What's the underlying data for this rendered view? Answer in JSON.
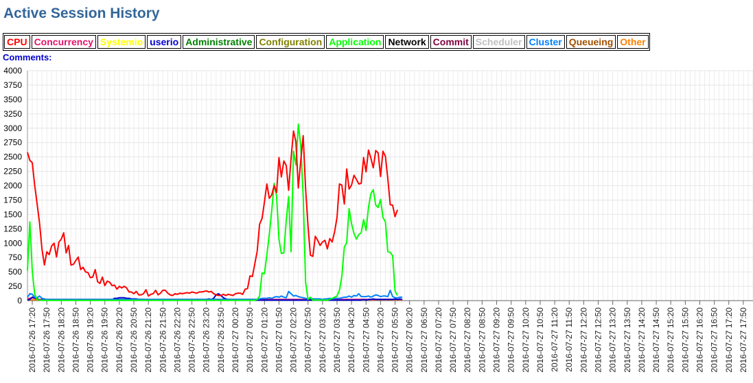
{
  "page": {
    "title": "Active Session History",
    "comments_label": "Comments:"
  },
  "legend": [
    {
      "label": "CPU",
      "color": "#ff0000"
    },
    {
      "label": "Concurrency",
      "color": "#e2136b"
    },
    {
      "label": "Systemio",
      "color": "#ffff00"
    },
    {
      "label": "userio",
      "color": "#0000cc"
    },
    {
      "label": "Administrative",
      "color": "#008000"
    },
    {
      "label": "Configuration",
      "color": "#808000"
    },
    {
      "label": "Application",
      "color": "#00ff00"
    },
    {
      "label": "Network",
      "color": "#000000"
    },
    {
      "label": "Commit",
      "color": "#800040"
    },
    {
      "label": "Scheduler",
      "color": "#c0c0c0"
    },
    {
      "label": "Cluster",
      "color": "#0080ff"
    },
    {
      "label": "Queueing",
      "color": "#a05000"
    },
    {
      "label": "Other",
      "color": "#ff8000"
    }
  ],
  "chart_data": {
    "type": "line",
    "title": "Active Session History",
    "ylim": [
      0,
      4000
    ],
    "yticks": [
      0,
      250,
      500,
      750,
      1000,
      1250,
      1500,
      1750,
      2000,
      2250,
      2500,
      2750,
      3000,
      3250,
      3500,
      3750,
      4000
    ],
    "xticks": [
      "2016-07-26 17:20",
      "2016-07-26 17:50",
      "2016-07-26 18:20",
      "2016-07-26 18:50",
      "2016-07-26 19:20",
      "2016-07-26 19:50",
      "2016-07-26 20:20",
      "2016-07-26 20:50",
      "2016-07-26 21:20",
      "2016-07-26 21:50",
      "2016-07-26 22:20",
      "2016-07-26 22:50",
      "2016-07-26 23:20",
      "2016-07-26 23:50",
      "2016-07-27 00:20",
      "2016-07-27 00:50",
      "2016-07-27 01:20",
      "2016-07-27 01:50",
      "2016-07-27 02:20",
      "2016-07-27 02:50",
      "2016-07-27 03:20",
      "2016-07-27 03:50",
      "2016-07-27 04:20",
      "2016-07-27 04:50",
      "2016-07-27 05:20",
      "2016-07-27 05:50",
      "2016-07-27 06:20",
      "2016-07-27 06:50",
      "2016-07-27 07:20",
      "2016-07-27 07:50",
      "2016-07-27 08:20",
      "2016-07-27 08:50",
      "2016-07-27 09:20",
      "2016-07-27 09:50",
      "2016-07-27 10:20",
      "2016-07-27 10:50",
      "2016-07-27 11:20",
      "2016-07-27 11:50",
      "2016-07-27 12:20",
      "2016-07-27 12:50",
      "2016-07-27 13:20",
      "2016-07-27 13:50",
      "2016-07-27 14:20",
      "2016-07-27 14:50",
      "2016-07-27 15:20",
      "2016-07-27 15:50",
      "2016-07-27 16:20",
      "2016-07-27 16:50",
      "2016-07-27 17:20",
      "2016-07-27 17:50"
    ],
    "x_start": "2016-07-26 17:10",
    "x_end": "2016-07-27 18:10",
    "x_interval_minutes": 5,
    "grid": true,
    "legend_position": "top-left",
    "series": [
      {
        "name": "CPU",
        "color": "#ff0000",
        "values": [
          2580,
          2440,
          2400,
          2000,
          1680,
          1350,
          900,
          620,
          850,
          800,
          950,
          1000,
          760,
          1020,
          1070,
          1180,
          830,
          960,
          620,
          630,
          700,
          760,
          540,
          580,
          500,
          490,
          400,
          410,
          540,
          330,
          300,
          410,
          260,
          340,
          320,
          260,
          270,
          200,
          250,
          220,
          250,
          220,
          150,
          150,
          120,
          160,
          100,
          100,
          120,
          190,
          80,
          110,
          120,
          180,
          100,
          130,
          180,
          180,
          130,
          100,
          90,
          120,
          110,
          130,
          120,
          130,
          140,
          130,
          150,
          140,
          130,
          150,
          150,
          160,
          170,
          150,
          160,
          120,
          100,
          90,
          90,
          110,
          90,
          110,
          100,
          90,
          120,
          130,
          130,
          110,
          200,
          210,
          430,
          420,
          640,
          860,
          1330,
          1430,
          1720,
          2030,
          1780,
          1840,
          2000,
          1880,
          2490,
          2150,
          2430,
          2350,
          1920,
          2470,
          2950,
          2760,
          1960,
          2430,
          2870,
          1950,
          1300,
          790,
          770,
          1120,
          1050,
          960,
          1020,
          1050,
          900,
          1080,
          1020,
          1200,
          1450,
          2030,
          2010,
          1680,
          2290,
          1940,
          2010,
          2180,
          2110,
          2030,
          2040,
          2490,
          2240,
          2620,
          2480,
          2310,
          2610,
          2570,
          2160,
          2600,
          2510,
          2120,
          1670,
          1660,
          1460,
          1580
        ]
      },
      {
        "name": "Application",
        "color": "#00ff00",
        "values": [
          520,
          1370,
          520,
          110,
          20,
          10,
          5,
          5,
          5,
          5,
          5,
          5,
          5,
          5,
          5,
          5,
          5,
          5,
          5,
          5,
          5,
          5,
          5,
          5,
          5,
          5,
          5,
          5,
          5,
          5,
          5,
          5,
          5,
          5,
          5,
          5,
          5,
          5,
          5,
          5,
          5,
          5,
          5,
          5,
          5,
          5,
          5,
          5,
          5,
          5,
          5,
          5,
          5,
          5,
          5,
          5,
          5,
          5,
          5,
          5,
          5,
          5,
          5,
          5,
          5,
          5,
          5,
          5,
          5,
          5,
          5,
          5,
          5,
          5,
          5,
          5,
          5,
          5,
          5,
          5,
          5,
          5,
          5,
          5,
          5,
          5,
          5,
          5,
          5,
          5,
          5,
          5,
          5,
          5,
          10,
          20,
          80,
          480,
          470,
          800,
          1150,
          1570,
          2040,
          1820,
          1070,
          820,
          830,
          1400,
          1810,
          850,
          2600,
          2360,
          3070,
          2700,
          1820,
          320,
          20,
          60,
          10,
          10,
          10,
          10,
          10,
          10,
          10,
          20,
          40,
          60,
          80,
          180,
          420,
          930,
          1010,
          1600,
          1340,
          1170,
          1070,
          1150,
          1180,
          1410,
          1220,
          1620,
          1860,
          1930,
          1660,
          1620,
          1760,
          1450,
          1370,
          850,
          840,
          780,
          170,
          90
        ]
      },
      {
        "name": "Cluster",
        "color": "#0080ff",
        "values": [
          60,
          120,
          110,
          60,
          50,
          80,
          40,
          30,
          20,
          20,
          20,
          20,
          20,
          20,
          20,
          20,
          20,
          20,
          20,
          20,
          20,
          20,
          20,
          20,
          20,
          20,
          20,
          20,
          20,
          20,
          20,
          20,
          20,
          20,
          20,
          20,
          20,
          20,
          20,
          20,
          20,
          20,
          20,
          20,
          20,
          20,
          20,
          20,
          20,
          20,
          20,
          20,
          20,
          20,
          20,
          20,
          20,
          20,
          20,
          20,
          20,
          20,
          20,
          20,
          20,
          20,
          20,
          20,
          20,
          20,
          20,
          20,
          20,
          20,
          20,
          20,
          20,
          20,
          20,
          20,
          20,
          20,
          20,
          20,
          20,
          20,
          20,
          20,
          20,
          20,
          20,
          20,
          20,
          20,
          20,
          20,
          30,
          40,
          40,
          40,
          50,
          40,
          60,
          70,
          60,
          80,
          60,
          50,
          160,
          120,
          80,
          90,
          70,
          60,
          50,
          40,
          30,
          40,
          30,
          30,
          30,
          30,
          20,
          30,
          30,
          40,
          30,
          40,
          40,
          40,
          50,
          60,
          60,
          80,
          60,
          90,
          80,
          120,
          70,
          70,
          70,
          80,
          60,
          80,
          100,
          90,
          70,
          80,
          80,
          70,
          180,
          70,
          50,
          50,
          60,
          60
        ]
      },
      {
        "name": "userio",
        "color": "#0000cc",
        "values": [
          10,
          20,
          60,
          50,
          30,
          10,
          10,
          10,
          10,
          10,
          10,
          10,
          10,
          10,
          10,
          10,
          10,
          10,
          10,
          10,
          10,
          10,
          10,
          10,
          10,
          10,
          10,
          10,
          10,
          10,
          10,
          10,
          10,
          10,
          10,
          10,
          40,
          40,
          50,
          50,
          50,
          40,
          40,
          30,
          30,
          30,
          20,
          20,
          20,
          10,
          10,
          10,
          10,
          10,
          10,
          10,
          10,
          10,
          10,
          10,
          10,
          10,
          10,
          10,
          10,
          10,
          10,
          10,
          10,
          10,
          10,
          10,
          10,
          10,
          20,
          30,
          20,
          40,
          100,
          120,
          90,
          50,
          30,
          20,
          10,
          10,
          10,
          10,
          10,
          10,
          10,
          10,
          10,
          10,
          10,
          10,
          10,
          10,
          10,
          10,
          10,
          10,
          10,
          10,
          10,
          10,
          10,
          10,
          10,
          10,
          10,
          10,
          10,
          10,
          10,
          10,
          10,
          10,
          10,
          10,
          10,
          10,
          10,
          10,
          10,
          10,
          10,
          10,
          10,
          10,
          10,
          10,
          10,
          10,
          10,
          10,
          10,
          10,
          10,
          20,
          10,
          20,
          20,
          30,
          20,
          20,
          20,
          20,
          20,
          20,
          20,
          20,
          30,
          20,
          30,
          20
        ]
      },
      {
        "name": "Concurrency",
        "color": "#e2136b",
        "values": [
          30,
          40,
          50,
          40,
          30,
          20,
          20,
          20,
          20,
          20,
          20,
          20,
          20,
          20,
          20,
          20,
          20,
          20,
          20,
          20,
          20,
          20,
          20,
          20,
          20,
          20,
          20,
          20,
          20,
          20,
          20,
          20,
          20,
          20,
          20,
          20,
          20,
          20,
          20,
          20,
          20,
          20,
          20,
          20,
          20,
          20,
          20,
          20,
          20,
          20,
          20,
          20,
          20,
          20,
          20,
          20,
          20,
          20,
          20,
          20,
          20,
          20,
          20,
          20,
          20,
          20,
          20,
          20,
          20,
          20,
          20,
          20,
          20,
          20,
          20,
          20,
          20,
          20,
          20,
          20,
          20,
          20,
          20,
          20,
          20,
          20,
          20,
          20,
          20,
          20,
          20,
          20,
          20,
          20,
          20,
          20,
          20,
          20,
          20,
          20,
          20,
          20,
          20,
          20,
          20,
          20,
          20,
          20,
          20,
          20,
          20,
          20,
          20,
          20,
          20,
          20,
          20,
          20,
          20,
          20,
          20,
          20,
          20,
          20,
          20,
          20,
          20,
          20,
          20,
          20,
          20,
          20,
          20,
          20,
          20,
          20,
          20,
          20,
          20,
          20,
          20,
          20,
          20,
          20,
          20,
          20,
          20,
          20,
          20,
          20,
          20,
          20,
          20,
          20,
          20,
          20
        ]
      },
      {
        "name": "Other",
        "color": "#ff8000",
        "values": [
          15,
          15,
          15,
          15,
          15,
          15,
          15,
          15,
          15,
          15,
          15,
          15,
          15,
          15,
          15,
          15,
          15,
          15,
          15,
          15,
          15,
          15,
          15,
          15,
          15,
          15,
          15,
          15,
          15,
          15,
          15,
          15,
          15,
          15,
          15,
          15,
          15,
          15,
          15,
          15,
          15,
          15,
          15,
          15,
          15,
          15,
          15,
          15,
          15,
          15,
          15,
          15,
          15,
          15,
          15,
          15,
          15,
          15,
          15,
          15,
          15,
          15,
          15,
          15,
          15,
          15,
          15,
          15,
          15,
          15,
          15,
          15,
          15,
          15,
          15,
          15,
          15,
          15,
          15,
          15,
          15,
          15,
          15,
          15,
          15,
          15,
          15,
          15,
          15,
          15,
          15,
          15,
          15,
          15,
          15,
          15,
          15,
          15,
          15,
          15,
          15,
          15,
          15,
          15,
          15,
          15,
          15,
          15,
          15,
          15,
          15,
          15,
          15,
          15,
          15,
          15,
          15,
          15,
          15,
          15,
          15,
          15,
          15,
          15,
          15,
          15,
          15,
          15,
          15,
          15,
          15,
          15,
          15,
          15,
          15,
          15,
          15,
          15,
          15,
          15,
          15,
          15,
          15,
          15,
          15,
          15,
          15,
          15,
          15,
          15,
          15,
          15,
          15,
          15,
          15,
          15
        ]
      }
    ]
  }
}
